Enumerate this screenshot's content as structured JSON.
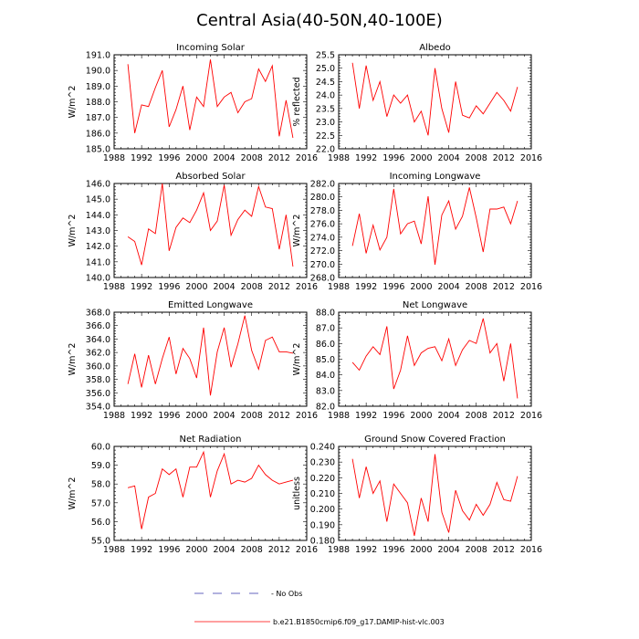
{
  "title": "Central Asia(40-50N,40-100E)",
  "legend": {
    "obs_label": "- No Obs",
    "model_label": "b.e21.B1850cmip6.f09_g17.DAMIP-hist-vlc.003",
    "obs_color": "#3333aa",
    "model_color": "#ff0000"
  },
  "chart_data": [
    {
      "type": "line",
      "title": "Incoming Solar",
      "ylabel": "W/m^2",
      "xlim": [
        1988,
        2016
      ],
      "ylim": [
        185.0,
        191.0
      ],
      "xticks": [
        1988,
        1992,
        1996,
        2000,
        2004,
        2008,
        2012,
        2016
      ],
      "yticks": [
        185.0,
        186.0,
        187.0,
        188.0,
        189.0,
        190.0,
        191.0
      ],
      "ydecimals": 1,
      "series": [
        {
          "name": "b.e21.B1850cmip6.f09_g17.DAMIP-hist-vlc.003",
          "color": "#ff0000",
          "x": [
            1990,
            1991,
            1992,
            1993,
            1994,
            1995,
            1996,
            1997,
            1998,
            1999,
            2000,
            2001,
            2002,
            2003,
            2004,
            2005,
            2006,
            2007,
            2008,
            2009,
            2010,
            2011,
            2012,
            2013,
            2014
          ],
          "values": [
            190.4,
            186.0,
            187.8,
            187.7,
            188.9,
            190.0,
            186.4,
            187.5,
            189.0,
            186.2,
            188.3,
            187.7,
            190.7,
            187.7,
            188.3,
            188.6,
            187.3,
            188.0,
            188.2,
            190.1,
            189.3,
            190.3,
            185.8,
            188.1,
            185.7
          ]
        }
      ]
    },
    {
      "type": "line",
      "title": "Albedo",
      "ylabel": "% reflected",
      "xlim": [
        1988,
        2016
      ],
      "ylim": [
        22.0,
        25.5
      ],
      "xticks": [
        1988,
        1992,
        1996,
        2000,
        2004,
        2008,
        2012,
        2016
      ],
      "yticks": [
        22.0,
        22.5,
        23.0,
        23.5,
        24.0,
        24.5,
        25.0,
        25.5
      ],
      "ydecimals": 1,
      "series": [
        {
          "name": "b.e21.B1850cmip6.f09_g17.DAMIP-hist-vlc.003",
          "color": "#ff0000",
          "x": [
            1990,
            1991,
            1992,
            1993,
            1994,
            1995,
            1996,
            1997,
            1998,
            1999,
            2000,
            2001,
            2002,
            2003,
            2004,
            2005,
            2006,
            2007,
            2008,
            2009,
            2010,
            2011,
            2012,
            2013,
            2014
          ],
          "values": [
            25.2,
            23.5,
            25.1,
            23.8,
            24.5,
            23.2,
            24.0,
            23.7,
            24.0,
            23.0,
            23.4,
            22.5,
            25.0,
            23.5,
            22.6,
            24.5,
            23.25,
            23.15,
            23.6,
            23.3,
            23.7,
            24.1,
            23.8,
            23.4,
            24.3
          ]
        }
      ]
    },
    {
      "type": "line",
      "title": "Absorbed Solar",
      "ylabel": "W/m^2",
      "xlim": [
        1988,
        2016
      ],
      "ylim": [
        140.0,
        146.0
      ],
      "xticks": [
        1988,
        1992,
        1996,
        2000,
        2004,
        2008,
        2012,
        2016
      ],
      "yticks": [
        140.0,
        141.0,
        142.0,
        143.0,
        144.0,
        145.0,
        146.0
      ],
      "ydecimals": 1,
      "series": [
        {
          "name": "b.e21.B1850cmip6.f09_g17.DAMIP-hist-vlc.003",
          "color": "#ff0000",
          "x": [
            1990,
            1991,
            1992,
            1993,
            1994,
            1995,
            1996,
            1997,
            1998,
            1999,
            2000,
            2001,
            2002,
            2003,
            2004,
            2005,
            2006,
            2007,
            2008,
            2009,
            2010,
            2011,
            2012,
            2013,
            2014
          ],
          "values": [
            142.6,
            142.3,
            140.8,
            143.1,
            142.8,
            146.0,
            141.7,
            143.2,
            143.8,
            143.5,
            144.3,
            145.4,
            143.0,
            143.6,
            145.9,
            142.7,
            143.7,
            144.3,
            143.9,
            145.8,
            144.5,
            144.4,
            141.8,
            144.0,
            140.7
          ]
        }
      ]
    },
    {
      "type": "line",
      "title": "Incoming Longwave",
      "ylabel": "W/m^2",
      "xlim": [
        1988,
        2016
      ],
      "ylim": [
        268.0,
        282.0
      ],
      "xticks": [
        1988,
        1992,
        1996,
        2000,
        2004,
        2008,
        2012,
        2016
      ],
      "yticks": [
        268.0,
        270.0,
        272.0,
        274.0,
        276.0,
        278.0,
        280.0,
        282.0
      ],
      "ydecimals": 1,
      "series": [
        {
          "name": "b.e21.B1850cmip6.f09_g17.DAMIP-hist-vlc.003",
          "color": "#ff0000",
          "x": [
            1990,
            1991,
            1992,
            1993,
            1994,
            1995,
            1996,
            1997,
            1998,
            1999,
            2000,
            2001,
            2002,
            2003,
            2004,
            2005,
            2006,
            2007,
            2008,
            2009,
            2010,
            2011,
            2012,
            2013,
            2014
          ],
          "values": [
            272.7,
            277.5,
            271.6,
            275.8,
            272.1,
            274.0,
            281.2,
            274.5,
            276.0,
            276.4,
            273.0,
            280.1,
            269.9,
            277.3,
            279.4,
            275.2,
            277.1,
            281.4,
            276.9,
            271.8,
            278.2,
            278.2,
            278.5,
            276.0,
            279.4
          ]
        }
      ]
    },
    {
      "type": "line",
      "title": "Emitted Longwave",
      "ylabel": "W/m^2",
      "xlim": [
        1988,
        2016
      ],
      "ylim": [
        354.0,
        368.0
      ],
      "xticks": [
        1988,
        1992,
        1996,
        2000,
        2004,
        2008,
        2012,
        2016
      ],
      "yticks": [
        354.0,
        356.0,
        358.0,
        360.0,
        362.0,
        364.0,
        366.0,
        368.0
      ],
      "ydecimals": 1,
      "series": [
        {
          "name": "b.e21.B1850cmip6.f09_g17.DAMIP-hist-vlc.003",
          "color": "#ff0000",
          "x": [
            1990,
            1991,
            1992,
            1993,
            1994,
            1995,
            1996,
            1997,
            1998,
            1999,
            2000,
            2001,
            2002,
            2003,
            2004,
            2005,
            2006,
            2007,
            2008,
            2009,
            2010,
            2011,
            2012,
            2013,
            2014
          ],
          "values": [
            357.3,
            361.8,
            356.8,
            361.6,
            357.3,
            361.1,
            364.3,
            358.8,
            362.6,
            361.1,
            358.2,
            365.7,
            355.6,
            362.1,
            365.7,
            359.8,
            363.3,
            367.5,
            362.3,
            359.5,
            363.8,
            364.3,
            362.1,
            362.1,
            361.9
          ]
        }
      ]
    },
    {
      "type": "line",
      "title": "Net Longwave",
      "ylabel": "W/m^2",
      "xlim": [
        1988,
        2016
      ],
      "ylim": [
        82.0,
        88.0
      ],
      "xticks": [
        1988,
        1992,
        1996,
        2000,
        2004,
        2008,
        2012,
        2016
      ],
      "yticks": [
        82.0,
        83.0,
        84.0,
        85.0,
        86.0,
        87.0,
        88.0
      ],
      "ydecimals": 1,
      "series": [
        {
          "name": "b.e21.B1850cmip6.f09_g17.DAMIP-hist-vlc.003",
          "color": "#ff0000",
          "x": [
            1990,
            1991,
            1992,
            1993,
            1994,
            1995,
            1996,
            1997,
            1998,
            1999,
            2000,
            2001,
            2002,
            2003,
            2004,
            2005,
            2006,
            2007,
            2008,
            2009,
            2010,
            2011,
            2012,
            2013,
            2014
          ],
          "values": [
            84.8,
            84.3,
            85.2,
            85.8,
            85.3,
            87.1,
            83.1,
            84.3,
            86.5,
            84.6,
            85.4,
            85.7,
            85.8,
            84.9,
            86.3,
            84.6,
            85.6,
            86.2,
            86.0,
            87.6,
            85.4,
            86.0,
            83.6,
            86.0,
            82.5
          ]
        }
      ]
    },
    {
      "type": "line",
      "title": "Net Radiation",
      "ylabel": "W/m^2",
      "xlim": [
        1988,
        2016
      ],
      "ylim": [
        55.0,
        60.0
      ],
      "xticks": [
        1988,
        1992,
        1996,
        2000,
        2004,
        2008,
        2012,
        2016
      ],
      "yticks": [
        55.0,
        56.0,
        57.0,
        58.0,
        59.0,
        60.0
      ],
      "ydecimals": 1,
      "series": [
        {
          "name": "b.e21.B1850cmip6.f09_g17.DAMIP-hist-vlc.003",
          "color": "#ff0000",
          "x": [
            1990,
            1991,
            1992,
            1993,
            1994,
            1995,
            1996,
            1997,
            1998,
            1999,
            2000,
            2001,
            2002,
            2003,
            2004,
            2005,
            2006,
            2007,
            2008,
            2009,
            2010,
            2011,
            2012,
            2013,
            2014
          ],
          "values": [
            57.8,
            57.9,
            55.6,
            57.3,
            57.5,
            58.8,
            58.5,
            58.8,
            57.3,
            58.9,
            58.9,
            59.7,
            57.3,
            58.7,
            59.6,
            58.0,
            58.2,
            58.1,
            58.3,
            59.0,
            58.5,
            58.2,
            58.0,
            58.1,
            58.2
          ]
        }
      ]
    },
    {
      "type": "line",
      "title": "Ground Snow Covered Fraction",
      "ylabel": "unitless",
      "xlim": [
        1988,
        2016
      ],
      "ylim": [
        0.18,
        0.24
      ],
      "xticks": [
        1988,
        1992,
        1996,
        2000,
        2004,
        2008,
        2012,
        2016
      ],
      "yticks": [
        0.18,
        0.19,
        0.2,
        0.21,
        0.22,
        0.23,
        0.24
      ],
      "ydecimals": 3,
      "series": [
        {
          "name": "b.e21.B1850cmip6.f09_g17.DAMIP-hist-vlc.003",
          "color": "#ff0000",
          "x": [
            1990,
            1991,
            1992,
            1993,
            1994,
            1995,
            1996,
            1997,
            1998,
            1999,
            2000,
            2001,
            2002,
            2003,
            2004,
            2005,
            2006,
            2007,
            2008,
            2009,
            2010,
            2011,
            2012,
            2013,
            2014
          ],
          "values": [
            0.232,
            0.207,
            0.227,
            0.21,
            0.218,
            0.192,
            0.216,
            0.21,
            0.204,
            0.183,
            0.207,
            0.192,
            0.235,
            0.198,
            0.185,
            0.212,
            0.199,
            0.193,
            0.203,
            0.196,
            0.203,
            0.217,
            0.206,
            0.205,
            0.221
          ]
        }
      ]
    }
  ]
}
